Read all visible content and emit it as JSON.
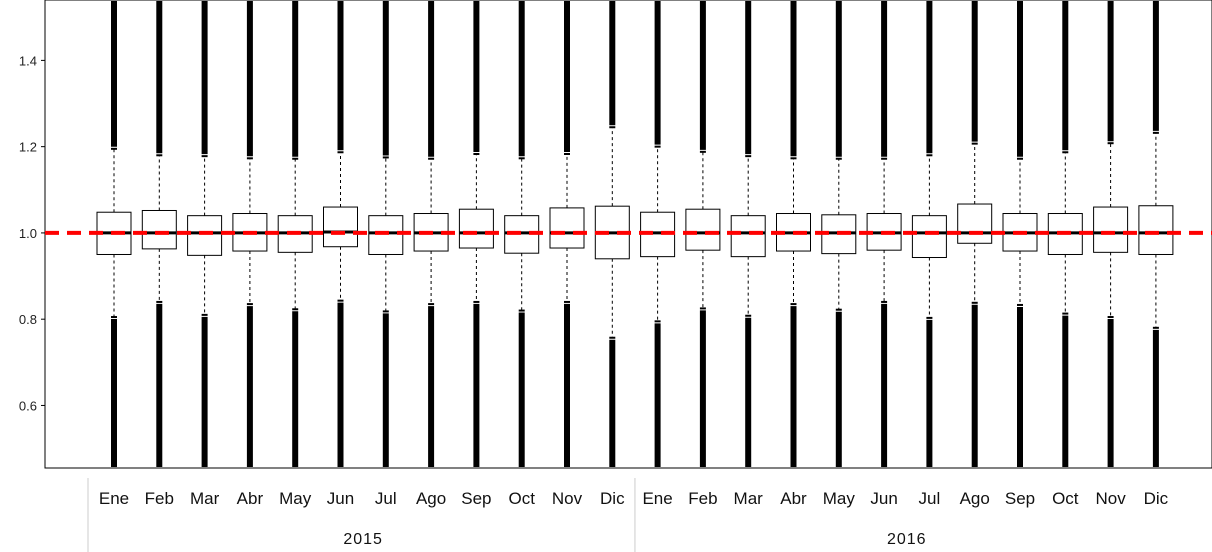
{
  "chart_data": {
    "type": "box",
    "title": "",
    "xlabel": "",
    "ylabel": "",
    "ylim": [
      0.455,
      1.54
    ],
    "yticks": [
      0.6,
      0.8,
      1.0,
      1.2,
      1.4
    ],
    "ytick_labels": [
      "0.6",
      "0.8",
      "1.0",
      "1.2",
      "1.4"
    ],
    "reference_line": {
      "y": 1.0,
      "color": "#ff0000",
      "style": "dashed"
    },
    "grid": false,
    "groups": [
      {
        "label": "2015",
        "months": [
          "Ene",
          "Feb",
          "Mar",
          "Abr",
          "May",
          "Jun",
          "Jul",
          "Ago",
          "Sep",
          "Oct",
          "Nov",
          "Dic"
        ]
      },
      {
        "label": "2016",
        "months": [
          "Ene",
          "Feb",
          "Mar",
          "Abr",
          "May",
          "Jun",
          "Jul",
          "Ago",
          "Sep",
          "Oct",
          "Nov",
          "Dic"
        ]
      }
    ],
    "boxes": [
      {
        "month": "Ene",
        "year": "2015",
        "whisker_low": 0.805,
        "q1": 0.95,
        "median": 1.0,
        "q3": 1.048,
        "whisker_high": 1.195
      },
      {
        "month": "Feb",
        "year": "2015",
        "whisker_low": 0.84,
        "q1": 0.963,
        "median": 1.0,
        "q3": 1.052,
        "whisker_high": 1.18
      },
      {
        "month": "Mar",
        "year": "2015",
        "whisker_low": 0.81,
        "q1": 0.948,
        "median": 1.0,
        "q3": 1.04,
        "whisker_high": 1.178
      },
      {
        "month": "Abr",
        "year": "2015",
        "whisker_low": 0.835,
        "q1": 0.958,
        "median": 1.0,
        "q3": 1.045,
        "whisker_high": 1.173
      },
      {
        "month": "May",
        "year": "2015",
        "whisker_low": 0.823,
        "q1": 0.955,
        "median": 1.0,
        "q3": 1.04,
        "whisker_high": 1.172
      },
      {
        "month": "Jun",
        "year": "2015",
        "whisker_low": 0.843,
        "q1": 0.968,
        "median": 1.002,
        "q3": 1.06,
        "whisker_high": 1.187
      },
      {
        "month": "Jul",
        "year": "2015",
        "whisker_low": 0.818,
        "q1": 0.95,
        "median": 1.0,
        "q3": 1.04,
        "whisker_high": 1.175
      },
      {
        "month": "Ago",
        "year": "2015",
        "whisker_low": 0.835,
        "q1": 0.958,
        "median": 1.0,
        "q3": 1.045,
        "whisker_high": 1.172
      },
      {
        "month": "Sep",
        "year": "2015",
        "whisker_low": 0.84,
        "q1": 0.965,
        "median": 1.0,
        "q3": 1.055,
        "whisker_high": 1.183
      },
      {
        "month": "Oct",
        "year": "2015",
        "whisker_low": 0.82,
        "q1": 0.953,
        "median": 1.0,
        "q3": 1.04,
        "whisker_high": 1.173
      },
      {
        "month": "Nov",
        "year": "2015",
        "whisker_low": 0.84,
        "q1": 0.965,
        "median": 1.0,
        "q3": 1.058,
        "whisker_high": 1.183
      },
      {
        "month": "Dic",
        "year": "2015",
        "whisker_low": 0.757,
        "q1": 0.94,
        "median": 1.0,
        "q3": 1.062,
        "whisker_high": 1.245
      },
      {
        "month": "Ene",
        "year": "2016",
        "whisker_low": 0.795,
        "q1": 0.945,
        "median": 1.0,
        "q3": 1.048,
        "whisker_high": 1.2
      },
      {
        "month": "Feb",
        "year": "2016",
        "whisker_low": 0.825,
        "q1": 0.96,
        "median": 1.0,
        "q3": 1.055,
        "whisker_high": 1.188
      },
      {
        "month": "Mar",
        "year": "2016",
        "whisker_low": 0.808,
        "q1": 0.945,
        "median": 1.0,
        "q3": 1.04,
        "whisker_high": 1.178
      },
      {
        "month": "Abr",
        "year": "2016",
        "whisker_low": 0.835,
        "q1": 0.958,
        "median": 1.0,
        "q3": 1.045,
        "whisker_high": 1.173
      },
      {
        "month": "May",
        "year": "2016",
        "whisker_low": 0.822,
        "q1": 0.952,
        "median": 1.0,
        "q3": 1.042,
        "whisker_high": 1.172
      },
      {
        "month": "Jun",
        "year": "2016",
        "whisker_low": 0.84,
        "q1": 0.96,
        "median": 1.0,
        "q3": 1.045,
        "whisker_high": 1.172
      },
      {
        "month": "Jul",
        "year": "2016",
        "whisker_low": 0.803,
        "q1": 0.943,
        "median": 1.0,
        "q3": 1.04,
        "whisker_high": 1.18
      },
      {
        "month": "Ago",
        "year": "2016",
        "whisker_low": 0.838,
        "q1": 0.976,
        "median": 1.0,
        "q3": 1.067,
        "whisker_high": 1.207
      },
      {
        "month": "Sep",
        "year": "2016",
        "whisker_low": 0.833,
        "q1": 0.958,
        "median": 1.0,
        "q3": 1.045,
        "whisker_high": 1.172
      },
      {
        "month": "Oct",
        "year": "2016",
        "whisker_low": 0.813,
        "q1": 0.95,
        "median": 1.0,
        "q3": 1.045,
        "whisker_high": 1.187
      },
      {
        "month": "Nov",
        "year": "2016",
        "whisker_low": 0.805,
        "q1": 0.955,
        "median": 1.0,
        "q3": 1.06,
        "whisker_high": 1.208
      },
      {
        "month": "Dic",
        "year": "2016",
        "whisker_low": 0.78,
        "q1": 0.95,
        "median": 1.0,
        "q3": 1.063,
        "whisker_high": 1.232
      }
    ]
  }
}
